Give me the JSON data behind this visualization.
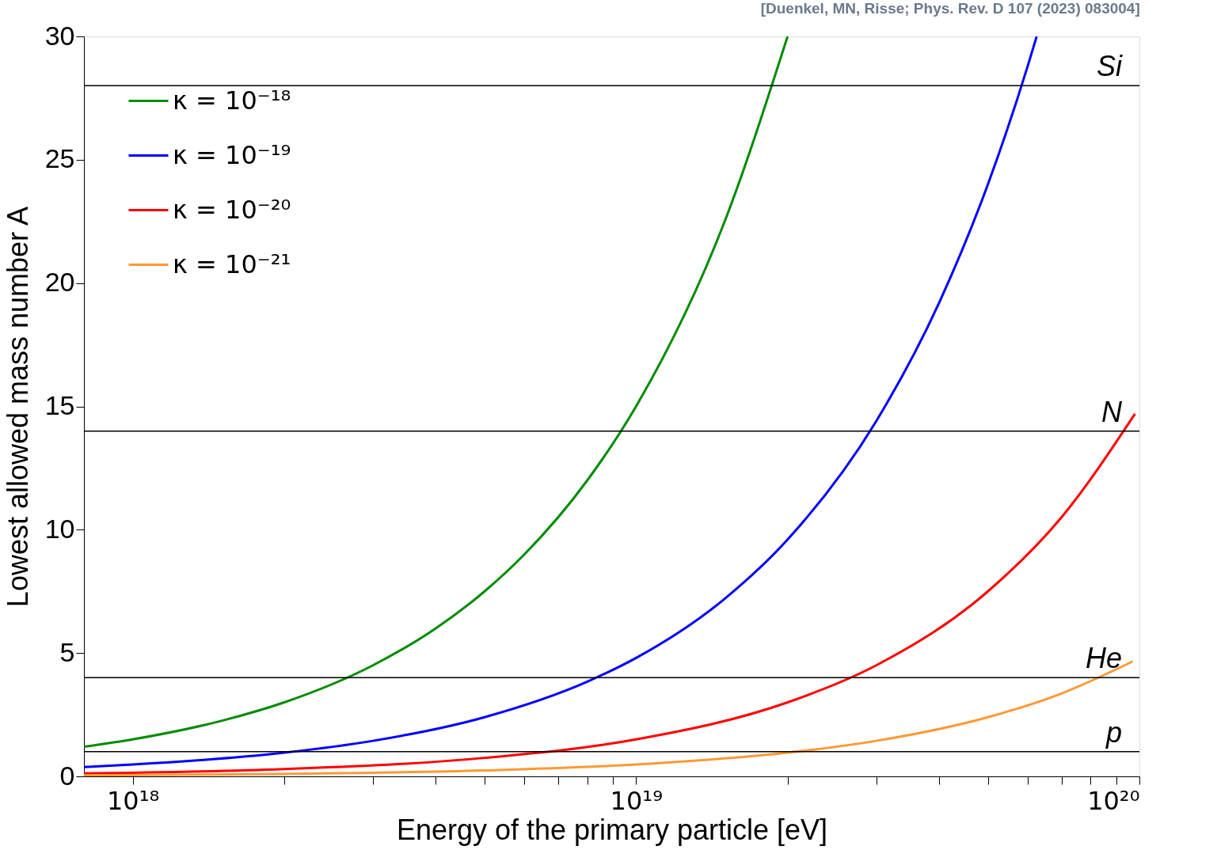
{
  "chart_data": {
    "type": "line",
    "xlabel": "Energy of the primary particle [eV]",
    "ylabel": "Lowest allowed mass number A",
    "annotations": [
      "[Duenkel, MN, Risse; Phys. Rev. D 107 (2023) 083004]"
    ],
    "log": "x",
    "xlim": [
      8e+17,
      1e+20
    ],
    "ylim": [
      0,
      30
    ],
    "xticks": [
      {
        "value": 1e+18,
        "label": "10¹⁸"
      },
      {
        "value": 2e+18,
        "label": null
      },
      {
        "value": 3e+18,
        "label": null
      },
      {
        "value": 4e+18,
        "label": null
      },
      {
        "value": 5e+18,
        "label": null
      },
      {
        "value": 6e+18,
        "label": null
      },
      {
        "value": 7e+18,
        "label": null
      },
      {
        "value": 8e+18,
        "label": null
      },
      {
        "value": 9e+18,
        "label": null
      },
      {
        "value": 1e+19,
        "label": "10¹⁹"
      },
      {
        "value": 2e+19,
        "label": null
      },
      {
        "value": 3e+19,
        "label": null
      },
      {
        "value": 4e+19,
        "label": null
      },
      {
        "value": 5e+19,
        "label": null
      },
      {
        "value": 6e+19,
        "label": null
      },
      {
        "value": 7e+19,
        "label": null
      },
      {
        "value": 8e+19,
        "label": null
      },
      {
        "value": 9e+19,
        "label": null
      },
      {
        "value": 1e+20,
        "label": "10²⁰"
      }
    ],
    "yticks": [
      0,
      5,
      10,
      15,
      20,
      25,
      30
    ],
    "grid": false,
    "legend": "top left",
    "marker": "none",
    "line_style": "solid",
    "series": [
      {
        "name": "κ = 10⁻¹⁸",
        "color": "#008c00",
        "x": [
          8e+17,
          1e+18,
          1.5e+18,
          2e+18,
          3e+18,
          4e+18,
          5e+18,
          6e+18,
          8e+18,
          1e+19,
          1.5e+19,
          2e+19
        ],
        "values": [
          1.2,
          1.5,
          2.25,
          3.0,
          4.5,
          6.0,
          7.5,
          9.0,
          12.0,
          15.0,
          22.5,
          30
        ]
      },
      {
        "name": "κ = 10⁻¹⁹",
        "color": "#0000ff",
        "x": [
          8e+17,
          1e+18,
          2e+18,
          3e+18,
          5e+18,
          8e+18,
          1e+19,
          1.5e+19,
          2e+19,
          3e+19,
          4e+19,
          5e+19,
          6e+19,
          6.25e+19
        ],
        "values": [
          0.38,
          0.48,
          0.96,
          1.44,
          2.4,
          3.84,
          4.8,
          7.2,
          9.6,
          14.4,
          19.2,
          24,
          28.8,
          30
        ]
      },
      {
        "name": "κ = 10⁻²⁰",
        "color": "#ff0000",
        "x": [
          8e+17,
          2e+18,
          5e+18,
          1e+19,
          2e+19,
          3e+19,
          5e+19,
          7e+19,
          9.8e+19
        ],
        "values": [
          0.12,
          0.3,
          0.75,
          1.5,
          3.0,
          4.5,
          7.5,
          10.5,
          14.7
        ]
      },
      {
        "name": "κ = 10⁻²¹",
        "color": "#ff9933",
        "x": [
          8e+17,
          2e+18,
          5e+18,
          1e+19,
          2e+19,
          3e+19,
          5e+19,
          7e+19,
          9.7e+19
        ],
        "values": [
          0.04,
          0.1,
          0.24,
          0.48,
          0.96,
          1.44,
          2.4,
          3.36,
          4.66
        ]
      }
    ],
    "ref_lines": [
      {
        "axis": "y",
        "value": 28,
        "label": "Si",
        "color": "#000000"
      },
      {
        "axis": "y",
        "value": 14,
        "label": "N",
        "color": "#000000"
      },
      {
        "axis": "y",
        "value": 4,
        "label": "He",
        "color": "#000000"
      },
      {
        "axis": "y",
        "value": 1,
        "label": "p",
        "color": "#000000"
      }
    ]
  }
}
